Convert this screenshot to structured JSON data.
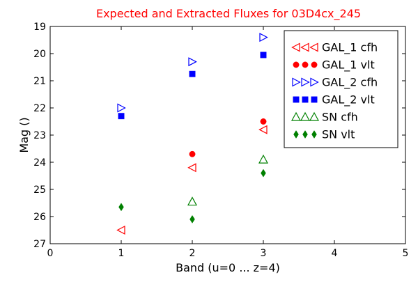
{
  "chart_data": {
    "type": "scatter",
    "title": "Expected and Extracted Fluxes for 03D4cx_245",
    "title_color": "#ff0000",
    "xlabel": "Band (u=0 ... z=4)",
    "ylabel": "Mag ()",
    "xlim": [
      0,
      5
    ],
    "ylim": [
      27,
      19
    ],
    "y_inverted": true,
    "xticks": [
      "0",
      "1",
      "2",
      "3",
      "4",
      "5"
    ],
    "yticks": [
      "19",
      "20",
      "21",
      "22",
      "23",
      "24",
      "25",
      "26",
      "27"
    ],
    "grid": false,
    "legend_position": "top-right",
    "series": [
      {
        "name": "GAL_1 cfh",
        "marker": "triangle-left-open",
        "color": "#ff0000",
        "points": [
          {
            "x": 1,
            "y": 26.5
          },
          {
            "x": 2,
            "y": 24.2
          },
          {
            "x": 3,
            "y": 22.8
          }
        ]
      },
      {
        "name": "GAL_1 vlt",
        "marker": "circle-filled",
        "color": "#ff0000",
        "points": [
          {
            "x": 2,
            "y": 23.7
          },
          {
            "x": 3,
            "y": 22.5
          }
        ]
      },
      {
        "name": "GAL_2 cfh",
        "marker": "triangle-right-open",
        "color": "#0000ff",
        "points": [
          {
            "x": 1,
            "y": 22.0
          },
          {
            "x": 2,
            "y": 20.3
          },
          {
            "x": 3,
            "y": 19.4
          }
        ]
      },
      {
        "name": "GAL_2 vlt",
        "marker": "square-filled",
        "color": "#0000ff",
        "points": [
          {
            "x": 1,
            "y": 22.3
          },
          {
            "x": 2,
            "y": 20.75
          },
          {
            "x": 3,
            "y": 20.05
          }
        ]
      },
      {
        "name": "SN cfh",
        "marker": "triangle-up-open",
        "color": "#008000",
        "points": [
          {
            "x": 2,
            "y": 25.45
          },
          {
            "x": 3,
            "y": 23.9
          }
        ]
      },
      {
        "name": "SN vlt",
        "marker": "diamond-filled",
        "color": "#008000",
        "points": [
          {
            "x": 1,
            "y": 25.65
          },
          {
            "x": 2,
            "y": 26.1
          },
          {
            "x": 3,
            "y": 24.4
          }
        ]
      }
    ]
  }
}
